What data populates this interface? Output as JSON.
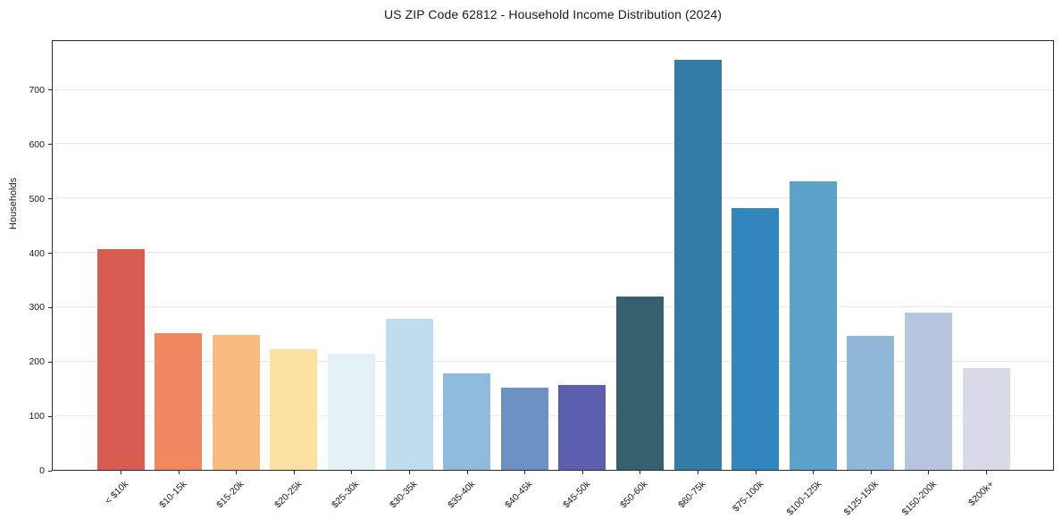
{
  "chart_data": {
    "type": "bar",
    "title": "US ZIP Code 62812 - Household Income Distribution (2024)",
    "xlabel": "",
    "ylabel": "Households",
    "categories": [
      "< $10k",
      "$10-15k",
      "$15-20k",
      "$20-25k",
      "$25-30k",
      "$30-35k",
      "$35-40k",
      "$40-45k",
      "$45-50k",
      "$50-60k",
      "$60-75k",
      "$75-100k",
      "$100-125k",
      "$125-150k",
      "$150-200k",
      "$200k+"
    ],
    "values": [
      406,
      252,
      248,
      222,
      214,
      278,
      178,
      152,
      156,
      318,
      755,
      482,
      530,
      247,
      290,
      188
    ],
    "bar_colors": [
      "#d95c53",
      "#f0875f",
      "#f9bb7d",
      "#fbe2a1",
      "#e3f0f5",
      "#bddcec",
      "#8fbcdd",
      "#6b92c3",
      "#5c5fae",
      "#35616f",
      "#337ca6",
      "#3187bd",
      "#5ba3c9",
      "#90b6d8",
      "#b7c6de",
      "#d8dae8"
    ],
    "yticks": [
      0,
      100,
      200,
      300,
      400,
      500,
      600,
      700
    ],
    "ylim": [
      0,
      792
    ],
    "grid": "horizontal-only",
    "legend": "none",
    "background_color": "#ffffff",
    "gridline_color": "#e8e8e8",
    "spine_color": "#2b2b2b"
  }
}
